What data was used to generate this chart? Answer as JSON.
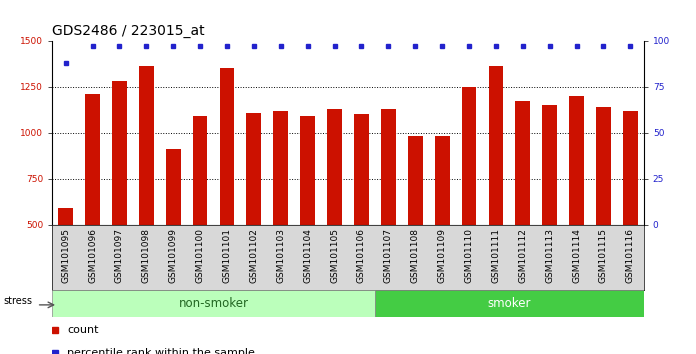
{
  "title": "GDS2486 / 223015_at",
  "samples": [
    "GSM101095",
    "GSM101096",
    "GSM101097",
    "GSM101098",
    "GSM101099",
    "GSM101100",
    "GSM101101",
    "GSM101102",
    "GSM101103",
    "GSM101104",
    "GSM101105",
    "GSM101106",
    "GSM101107",
    "GSM101108",
    "GSM101109",
    "GSM101110",
    "GSM101111",
    "GSM101112",
    "GSM101113",
    "GSM101114",
    "GSM101115",
    "GSM101116"
  ],
  "counts": [
    590,
    1210,
    1280,
    1360,
    910,
    1090,
    1350,
    1110,
    1120,
    1090,
    1130,
    1100,
    1130,
    980,
    980,
    1250,
    1360,
    1170,
    1150,
    1200,
    1140,
    1120
  ],
  "percentile_ranks": [
    88,
    97,
    97,
    97,
    97,
    97,
    97,
    97,
    97,
    97,
    97,
    97,
    97,
    97,
    97,
    97,
    97,
    97,
    97,
    97,
    97,
    97
  ],
  "non_smoker_count": 12,
  "smoker_count": 10,
  "bar_color": "#cc1100",
  "dot_color": "#2222cc",
  "non_smoker_color": "#bbffbb",
  "smoker_color": "#44cc44",
  "non_smoker_label_color": "#226622",
  "smoker_label_color": "#ffffff",
  "ylim_left": [
    500,
    1500
  ],
  "ylim_right": [
    0,
    100
  ],
  "yticks_left": [
    500,
    750,
    1000,
    1250,
    1500
  ],
  "yticks_right": [
    0,
    25,
    50,
    75,
    100
  ],
  "grid_values": [
    750,
    1000,
    1250
  ],
  "title_fontsize": 10,
  "tick_fontsize": 6.5,
  "label_fontsize": 8,
  "legend_fontsize": 8,
  "group_fontsize": 8.5
}
